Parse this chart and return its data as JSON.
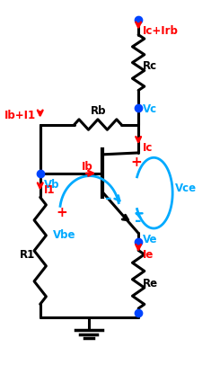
{
  "background": "#ffffff",
  "wire_color": "#000000",
  "red_color": "#ff0000",
  "blue_color": "#00aaff",
  "dot_color": "#0044ff",
  "labels": {
    "Ic_Irb": "Ic+Irb",
    "Rc": "Rc",
    "Rb": "Rb",
    "Vc": "Vc",
    "Ic": "Ic",
    "Ib_I1": "Ib+I1",
    "Vb": "Vb",
    "Ib": "Ib",
    "Vce": "Vce",
    "I1": "I1",
    "Vbe": "Vbe",
    "Ve": "Ve",
    "Ie": "Ie",
    "R1": "R1",
    "Re": "Re"
  }
}
